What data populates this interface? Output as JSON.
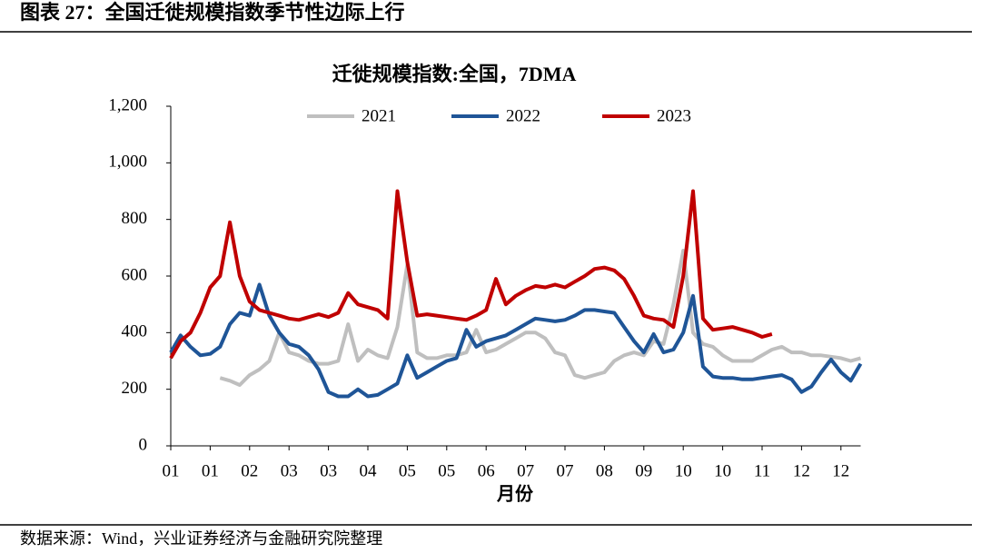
{
  "header": {
    "title": "图表 27：全国迁徙规模指数季节性边际上行"
  },
  "chart_data": {
    "type": "line",
    "title": "迁徙规模指数:全国，7DMA",
    "x_label": "月份",
    "categories": [
      "01",
      null,
      null,
      null,
      "01",
      null,
      null,
      null,
      "02",
      null,
      null,
      null,
      "03",
      null,
      null,
      null,
      "03",
      null,
      null,
      null,
      "04",
      null,
      null,
      null,
      "05",
      null,
      null,
      null,
      "05",
      null,
      null,
      null,
      "06",
      null,
      null,
      null,
      "07",
      null,
      null,
      null,
      "07",
      null,
      null,
      null,
      "08",
      null,
      null,
      null,
      "09",
      null,
      null,
      null,
      "10",
      null,
      null,
      null,
      "10",
      null,
      null,
      null,
      "11",
      null,
      null,
      null,
      "12",
      null,
      null,
      null,
      "12",
      null,
      null
    ],
    "ylim": [
      0,
      1200
    ],
    "yticks": [
      0,
      200,
      400,
      600,
      800,
      {
        "value": 1000,
        "label": "1,000"
      },
      {
        "value": 1200,
        "label": "1,200"
      }
    ],
    "legend": "top",
    "series": [
      {
        "name": "2021",
        "color": "#bfbfbf",
        "values": [
          null,
          null,
          null,
          null,
          null,
          240,
          230,
          215,
          250,
          270,
          300,
          400,
          330,
          320,
          300,
          290,
          290,
          300,
          430,
          300,
          340,
          320,
          310,
          420,
          640,
          330,
          310,
          310,
          320,
          320,
          330,
          410,
          330,
          340,
          360,
          380,
          400,
          400,
          380,
          330,
          320,
          250,
          240,
          250,
          260,
          300,
          320,
          330,
          320,
          370,
          360,
          500,
          690,
          400,
          360,
          350,
          320,
          300,
          300,
          300,
          320,
          340,
          350,
          330,
          330,
          320,
          320,
          315,
          310,
          300,
          310
        ]
      },
      {
        "name": "2022",
        "color": "#1f5597",
        "values": [
          330,
          390,
          350,
          320,
          325,
          350,
          430,
          470,
          460,
          570,
          460,
          400,
          360,
          350,
          320,
          270,
          190,
          175,
          175,
          200,
          175,
          180,
          200,
          220,
          320,
          240,
          260,
          280,
          300,
          310,
          410,
          350,
          370,
          380,
          390,
          410,
          430,
          450,
          445,
          440,
          445,
          460,
          480,
          480,
          475,
          470,
          420,
          370,
          330,
          395,
          330,
          340,
          400,
          530,
          280,
          245,
          240,
          240,
          235,
          235,
          240,
          245,
          250,
          235,
          190,
          210,
          260,
          305,
          260,
          230,
          290
        ]
      },
      {
        "name": "2023",
        "color": "#c00000",
        "values": [
          310,
          370,
          400,
          470,
          560,
          600,
          790,
          600,
          510,
          480,
          470,
          460,
          450,
          445,
          455,
          465,
          455,
          470,
          540,
          500,
          490,
          480,
          450,
          900,
          650,
          460,
          465,
          460,
          455,
          450,
          445,
          460,
          480,
          590,
          500,
          530,
          550,
          565,
          560,
          570,
          560,
          580,
          600,
          625,
          630,
          620,
          590,
          530,
          460,
          450,
          445,
          420,
          600,
          900,
          450,
          410,
          415,
          420,
          410,
          400,
          385,
          395,
          null,
          null,
          null,
          null,
          null,
          null,
          null,
          null,
          null
        ]
      }
    ]
  },
  "footer": {
    "source": "数据来源：Wind，兴业证券经济与金融研究院整理"
  }
}
